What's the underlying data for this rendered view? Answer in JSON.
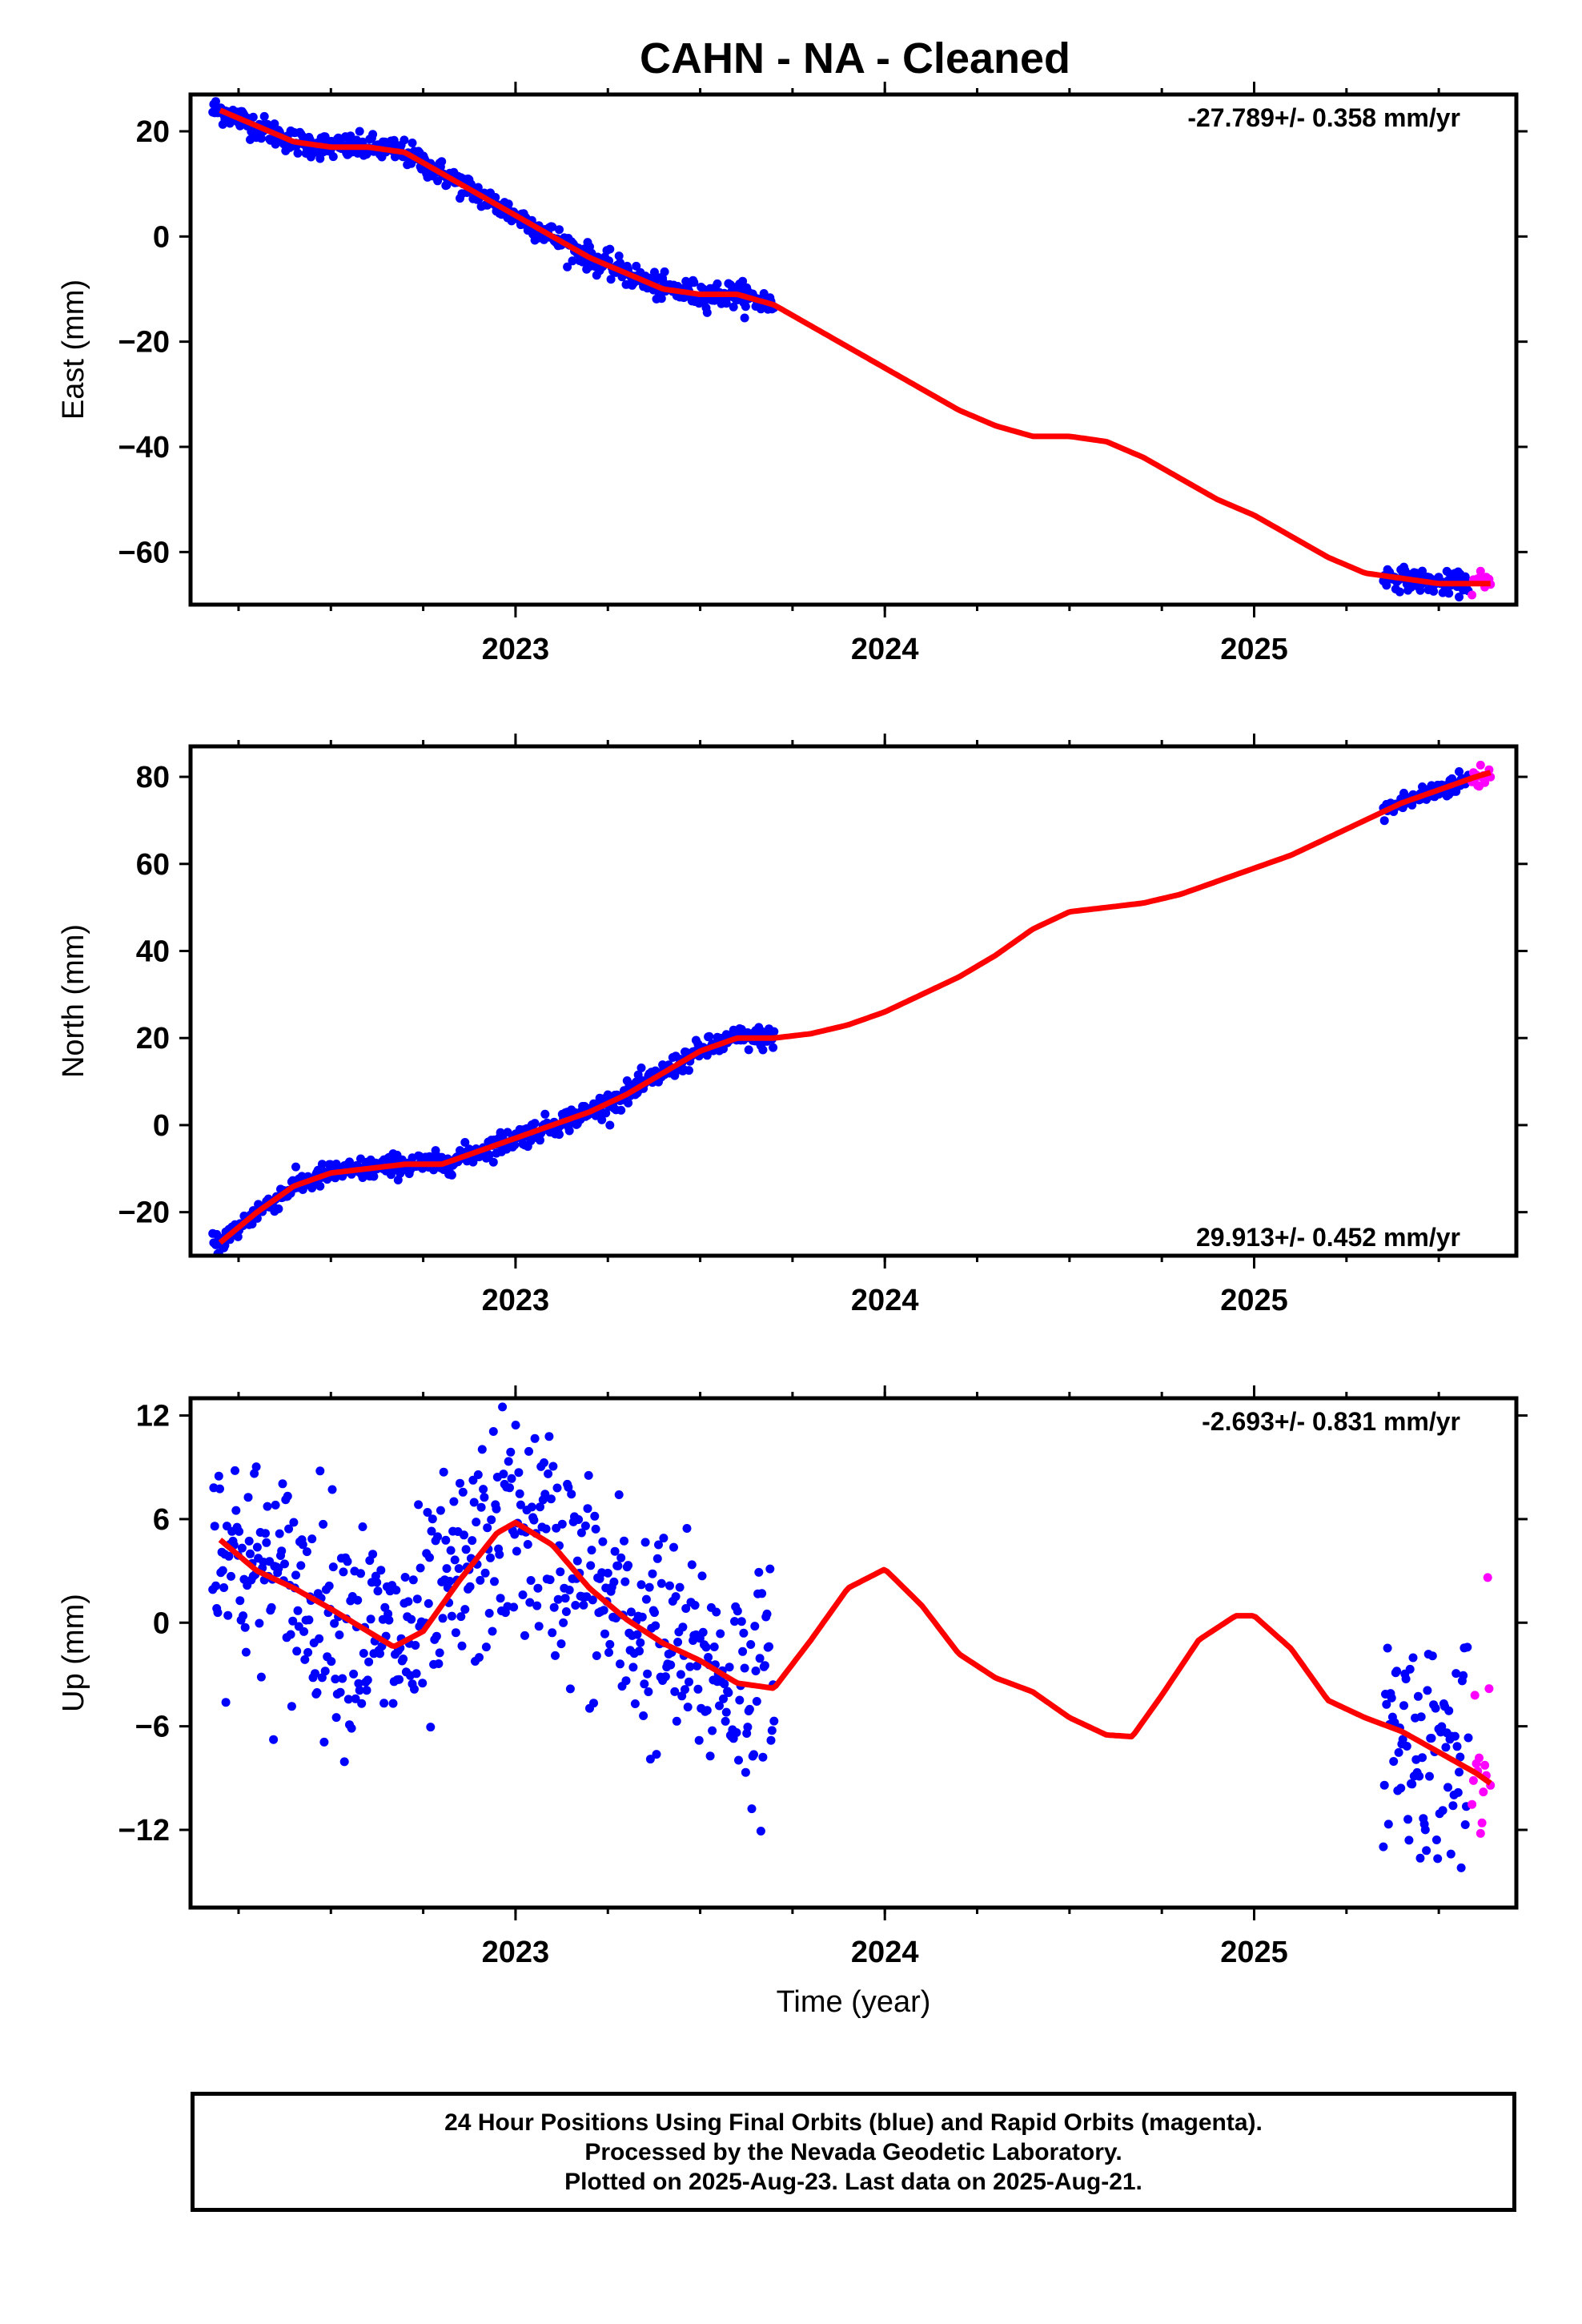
{
  "title": "CAHN  - NA - Cleaned",
  "colors": {
    "final": "#0000ff",
    "rapid": "#ff00ff",
    "model": "#ff0000"
  },
  "chart_data": [
    {
      "type": "scatter",
      "ylabel": "East (mm)",
      "xlabel": "",
      "rate_text": "-27.789+/- 0.358 mm/yr",
      "rate_position": "top-right",
      "xlim": [
        2022.12,
        2025.71
      ],
      "ylim": [
        -70,
        27
      ],
      "yticks": [
        20,
        0,
        -20,
        -40,
        -60
      ],
      "ytick_labels": [
        "20",
        "0",
        "−20",
        "−40",
        "−60"
      ],
      "xticks": [
        2023,
        2024,
        2025
      ],
      "xtick_labels": [
        "2023",
        "2024",
        "2025"
      ],
      "model": {
        "x": [
          2022.2,
          2022.3,
          2022.4,
          2022.5,
          2022.6,
          2022.7,
          2022.8,
          2022.9,
          2023.0,
          2023.1,
          2023.2,
          2023.3,
          2023.4,
          2023.5,
          2023.6,
          2023.7,
          2023.8,
          2023.9,
          2024.0,
          2024.1,
          2024.2,
          2024.3,
          2024.4,
          2024.5,
          2024.6,
          2024.7,
          2024.8,
          2024.9,
          2025.0,
          2025.1,
          2025.2,
          2025.3,
          2025.4,
          2025.5,
          2025.6,
          2025.64
        ],
        "y": [
          24,
          21,
          18,
          17,
          17,
          16,
          12,
          8,
          4,
          0,
          -4,
          -7,
          -10,
          -11,
          -11,
          -13,
          -17,
          -21,
          -25,
          -29,
          -33,
          -36,
          -38,
          -38,
          -39,
          -42,
          -46,
          -50,
          -53,
          -57,
          -61,
          -64,
          -65,
          -66,
          -66,
          -66
        ]
      },
      "final_segments": [
        {
          "x_start": 2022.18,
          "x_end": 2023.7,
          "scatter": 1.2
        },
        {
          "x_start": 2025.35,
          "x_end": 2025.58,
          "scatter": 1.0
        }
      ],
      "rapid_segment": {
        "x_start": 2025.59,
        "x_end": 2025.64,
        "scatter": 1.2
      }
    },
    {
      "type": "scatter",
      "ylabel": "North (mm)",
      "xlabel": "",
      "rate_text": "29.913+/- 0.452 mm/yr",
      "rate_position": "bottom-right",
      "xlim": [
        2022.12,
        2025.71
      ],
      "ylim": [
        -30,
        87
      ],
      "yticks": [
        80,
        60,
        40,
        20,
        0,
        -20
      ],
      "ytick_labels": [
        "80",
        "60",
        "40",
        "20",
        "0",
        "−20"
      ],
      "xticks": [
        2023,
        2024,
        2025
      ],
      "xtick_labels": [
        "2023",
        "2024",
        "2025"
      ],
      "model": {
        "x": [
          2022.2,
          2022.3,
          2022.4,
          2022.5,
          2022.6,
          2022.7,
          2022.8,
          2022.9,
          2023.0,
          2023.1,
          2023.2,
          2023.3,
          2023.4,
          2023.5,
          2023.6,
          2023.7,
          2023.8,
          2023.9,
          2024.0,
          2024.1,
          2024.2,
          2024.3,
          2024.4,
          2024.5,
          2024.6,
          2024.7,
          2024.8,
          2024.9,
          2025.0,
          2025.1,
          2025.2,
          2025.3,
          2025.4,
          2025.5,
          2025.6,
          2025.64
        ],
        "y": [
          -27,
          -20,
          -14,
          -11,
          -10,
          -9,
          -9,
          -6,
          -3,
          0,
          3,
          7,
          12,
          17,
          20,
          20,
          21,
          23,
          26,
          30,
          34,
          39,
          45,
          49,
          50,
          51,
          53,
          56,
          59,
          62,
          66,
          70,
          74,
          77,
          80,
          81
        ]
      },
      "final_segments": [
        {
          "x_start": 2022.18,
          "x_end": 2023.7,
          "scatter": 1.3
        },
        {
          "x_start": 2025.35,
          "x_end": 2025.58,
          "scatter": 1.2
        }
      ],
      "rapid_segment": {
        "x_start": 2025.59,
        "x_end": 2025.64,
        "scatter": 1.5
      }
    },
    {
      "type": "scatter",
      "ylabel": "Up (mm)",
      "xlabel": "Time (year)",
      "rate_text": "-2.693+/- 0.831 mm/yr",
      "rate_position": "top-right",
      "xlim": [
        2022.12,
        2025.71
      ],
      "ylim": [
        -16.5,
        13
      ],
      "yticks": [
        12,
        6,
        0,
        -6,
        -12
      ],
      "ytick_labels": [
        "12",
        "6",
        "0",
        "−6",
        "−12"
      ],
      "xticks": [
        2023,
        2024,
        2025
      ],
      "xtick_labels": [
        "2023",
        "2024",
        "2025"
      ],
      "model": {
        "x": [
          2022.2,
          2022.3,
          2022.4,
          2022.5,
          2022.6,
          2022.67,
          2022.75,
          2022.85,
          2022.95,
          2023.0,
          2023.1,
          2023.2,
          2023.3,
          2023.4,
          2023.5,
          2023.6,
          2023.7,
          2023.8,
          2023.9,
          2024.0,
          2024.1,
          2024.2,
          2024.3,
          2024.4,
          2024.5,
          2024.6,
          2024.67,
          2024.75,
          2024.85,
          2024.95,
          2025.0,
          2025.1,
          2025.2,
          2025.3,
          2025.4,
          2025.5,
          2025.6,
          2025.64
        ],
        "y": [
          4.8,
          3.0,
          2.0,
          0.8,
          -0.5,
          -1.4,
          -0.5,
          2.5,
          5.2,
          5.8,
          4.5,
          2.0,
          0.2,
          -1.2,
          -2.2,
          -3.5,
          -3.8,
          -1.0,
          2.0,
          3.1,
          1.0,
          -1.8,
          -3.2,
          -4.0,
          -5.5,
          -6.5,
          -6.6,
          -4.2,
          -1.0,
          0.4,
          0.4,
          -1.5,
          -4.5,
          -5.5,
          -6.3,
          -7.5,
          -8.7,
          -9.3
        ]
      },
      "final_segments": [
        {
          "x_start": 2022.18,
          "x_end": 2023.7,
          "scatter": 3.2
        },
        {
          "x_start": 2025.35,
          "x_end": 2025.58,
          "scatter": 3.2
        }
      ],
      "rapid_segment": {
        "x_start": 2025.59,
        "x_end": 2025.64,
        "scatter": 4.5
      }
    }
  ],
  "footer": {
    "line1": "24 Hour Positions Using Final Orbits (blue) and Rapid Orbits (magenta).",
    "line2": "Processed by the Nevada Geodetic Laboratory.",
    "line3": "Plotted on 2025-Aug-23. Last data on 2025-Aug-21."
  }
}
